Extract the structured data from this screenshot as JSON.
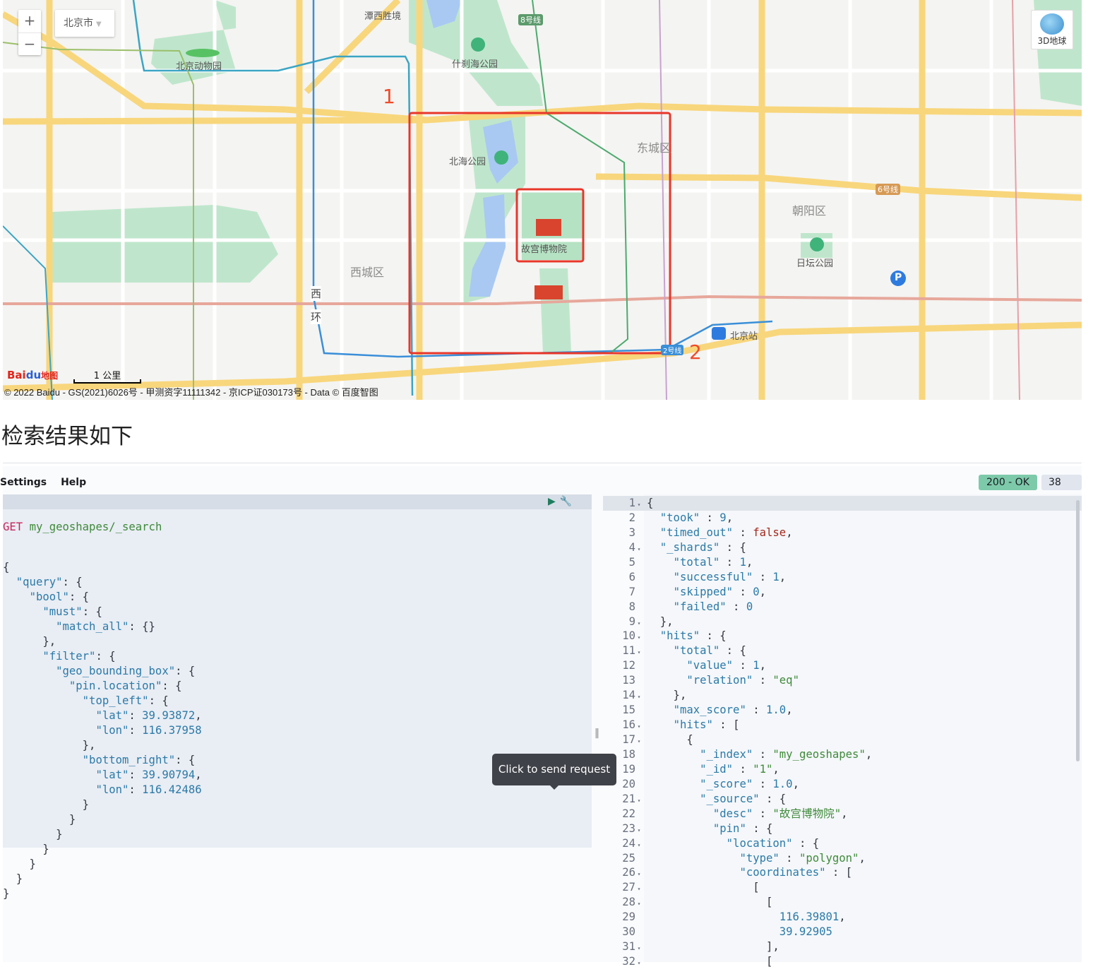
{
  "map": {
    "zoom_in": "+",
    "zoom_out": "−",
    "city": "北京市",
    "globe_label": "3D地球",
    "labels": {
      "tanxi": "潭西胜境",
      "line8": "8号线",
      "zoo": "北京动物园",
      "shichahai": "什刹海公园",
      "beihai": "北海公园",
      "dongcheng": "东城区",
      "line6": "6号线",
      "chaoyang": "朝阳区",
      "ritan": "日坛公园",
      "gugong": "故宫博物院",
      "xicheng": "西城区",
      "xi": "西",
      "huan": "环",
      "station": "北京站",
      "line2": "2号线",
      "parking": "P"
    },
    "annotations": {
      "box1": "1",
      "box2": "2"
    },
    "bbox_color": "#e8362a",
    "logo": {
      "bai": "Bai",
      "du": "du",
      "ditu": "地图"
    },
    "scale": "1 公里",
    "attribution": "© 2022 Baidu - GS(2021)6026号 - 甲测资字11111342 - 京ICP证030173号 - Data © 百度智图"
  },
  "heading": "检索结果如下",
  "console": {
    "menu": [
      "Settings",
      "Help"
    ],
    "status": "200 - OK",
    "status_color": "#7dcaab",
    "timing": "38 ms",
    "tooltip": "Click to send request",
    "request": {
      "method": "GET",
      "path": "my_geoshapes/_search",
      "lines": [
        "{",
        "  \"query\": {",
        "    \"bool\": {",
        "      \"must\": {",
        "        \"match_all\": {}",
        "      },",
        "      \"filter\": {",
        "        \"geo_bounding_box\": {",
        "          \"pin.location\": {",
        "            \"top_left\": {",
        "              \"lat\": 39.93872,",
        "              \"lon\": 116.37958",
        "            },",
        "            \"bottom_right\": {",
        "              \"lat\": 39.90794,",
        "              \"lon\": 116.42486",
        "            }",
        "          }",
        "        }",
        "      }",
        "    }",
        "  }",
        "}"
      ]
    },
    "response": {
      "fold_lines": [
        1,
        4,
        9,
        10,
        11,
        14,
        16,
        17,
        21,
        23,
        24,
        26,
        27,
        28,
        31,
        32
      ],
      "lines": [
        "{",
        "  \"took\" : 9,",
        "  \"timed_out\" : false,",
        "  \"_shards\" : {",
        "    \"total\" : 1,",
        "    \"successful\" : 1,",
        "    \"skipped\" : 0,",
        "    \"failed\" : 0",
        "  },",
        "  \"hits\" : {",
        "    \"total\" : {",
        "      \"value\" : 1,",
        "      \"relation\" : \"eq\"",
        "    },",
        "    \"max_score\" : 1.0,",
        "    \"hits\" : [",
        "      {",
        "        \"_index\" : \"my_geoshapes\",",
        "        \"_id\" : \"1\",",
        "        \"_score\" : 1.0,",
        "        \"_source\" : {",
        "          \"desc\" : \"故宫博物院\",",
        "          \"pin\" : {",
        "            \"location\" : {",
        "              \"type\" : \"polygon\",",
        "              \"coordinates\" : [",
        "                [",
        "                  [",
        "                    116.39801,",
        "                    39.92905",
        "                  ],",
        "                  ["
      ]
    }
  }
}
